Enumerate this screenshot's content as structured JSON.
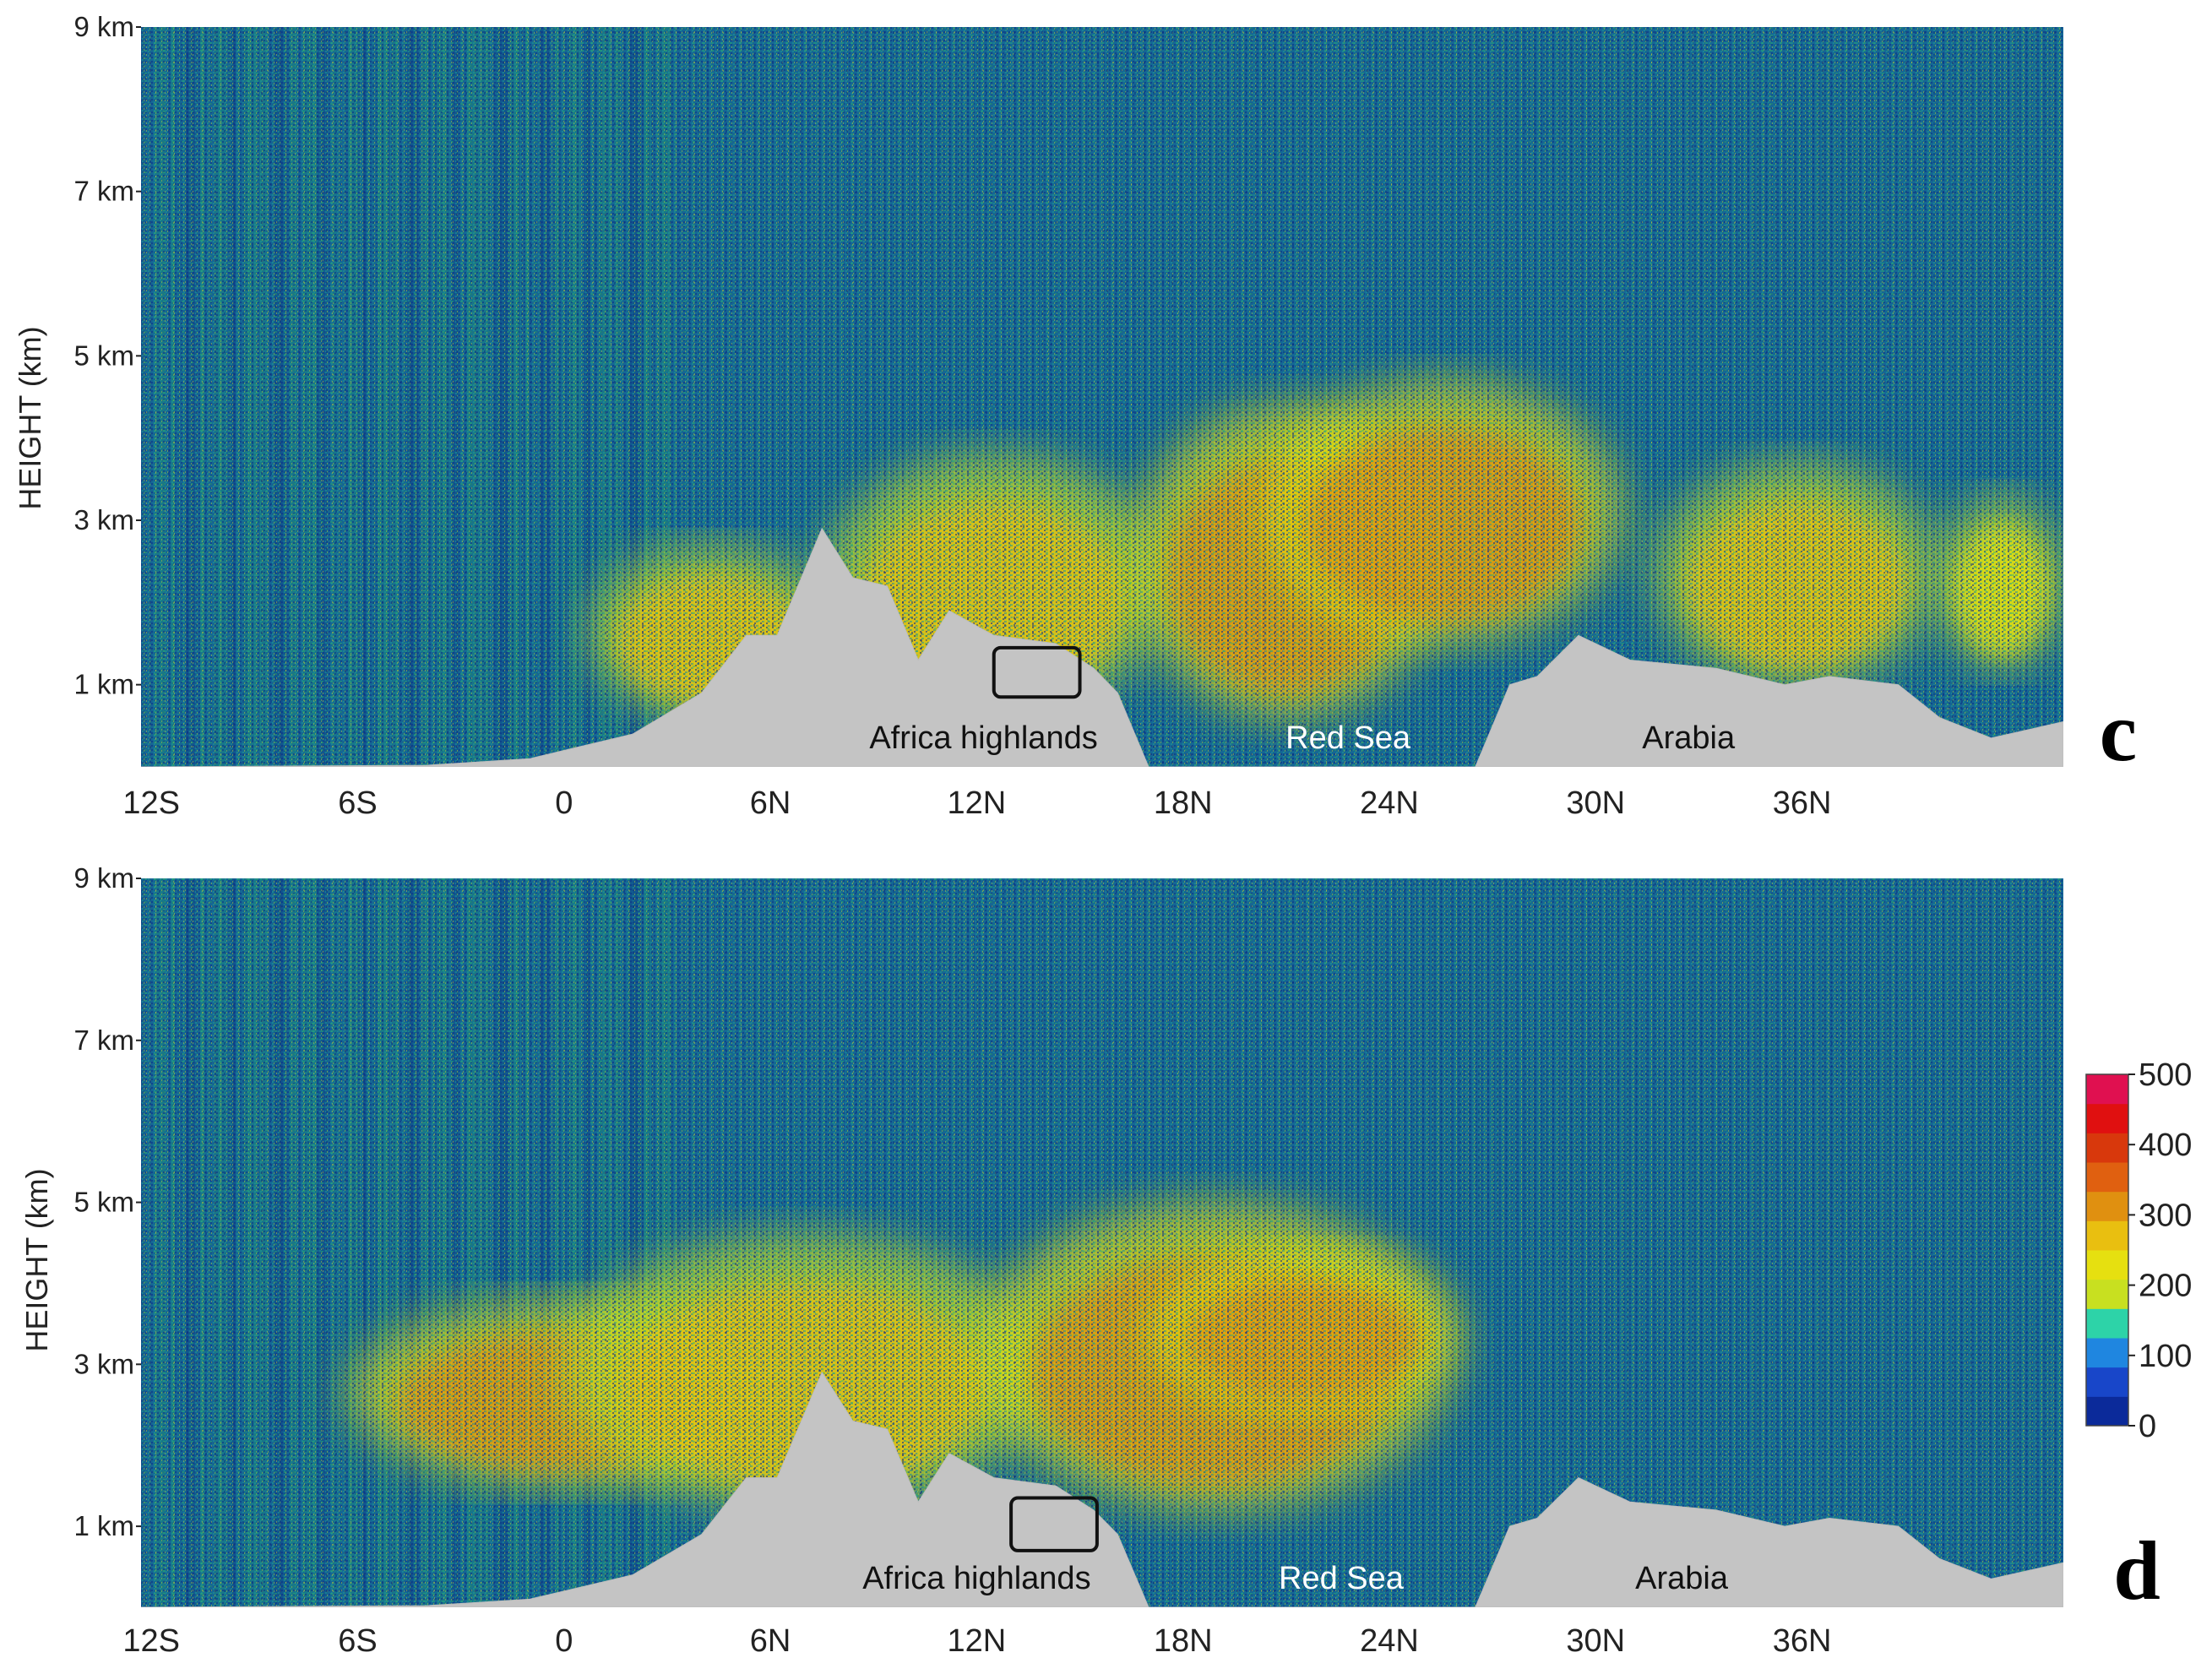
{
  "chart_data": [
    {
      "type": "heatmap",
      "panel_label": "c",
      "ylabel": "HEIGHT (km)",
      "y_ticks": [
        "9 km",
        "7 km",
        "5 km",
        "3 km",
        "1 km"
      ],
      "y_tick_values": [
        9,
        7,
        5,
        3,
        1
      ],
      "x_ticks": [
        "12S",
        "6S",
        "0",
        "6N",
        "12N",
        "18N",
        "24N",
        "30N",
        "36N"
      ],
      "x_tick_values": [
        -12,
        -6,
        0,
        6,
        12,
        18,
        24,
        30,
        36
      ],
      "xlim": [
        -12.3,
        43.6
      ],
      "ylim": [
        0,
        9
      ],
      "annotations": [
        {
          "text": "Africa highlands",
          "x": 12.2
        },
        {
          "text": "Red Sea",
          "x": 22.8
        },
        {
          "text": "Arabia",
          "x": 32.7
        }
      ],
      "highlight_box": {
        "x": [
          12.5,
          15
        ],
        "y": [
          0.85,
          1.45
        ]
      },
      "terrain": [
        [
          -12.3,
          0
        ],
        [
          -4,
          0.02
        ],
        [
          -1,
          0.1
        ],
        [
          0,
          0.2
        ],
        [
          2,
          0.4
        ],
        [
          4,
          0.9
        ],
        [
          5.3,
          1.6
        ],
        [
          6.2,
          1.6
        ],
        [
          7.5,
          2.9
        ],
        [
          8.4,
          2.3
        ],
        [
          9.4,
          2.2
        ],
        [
          10.3,
          1.3
        ],
        [
          11.2,
          1.9
        ],
        [
          12.5,
          1.6
        ],
        [
          14.3,
          1.5
        ],
        [
          15.4,
          1.2
        ],
        [
          16.1,
          0.9
        ],
        [
          17,
          0
        ],
        [
          26.5,
          0
        ],
        [
          27.5,
          1
        ],
        [
          28.3,
          1.1
        ],
        [
          29.5,
          1.6
        ],
        [
          31,
          1.3
        ],
        [
          33.5,
          1.2
        ],
        [
          35.5,
          1.0
        ],
        [
          36.8,
          1.1
        ],
        [
          38.8,
          1.0
        ],
        [
          40,
          0.6
        ],
        [
          41.5,
          0.35
        ],
        [
          43.6,
          0.55
        ]
      ],
      "aerosol_layers": [
        {
          "lat": [
            0.7,
            7.8
          ],
          "z": [
            0.6,
            2.7
          ],
          "level": 250
        },
        {
          "lat": [
            7.5,
            17.5
          ],
          "z": [
            0.6,
            3.8
          ],
          "level": 280
        },
        {
          "lat": [
            16.5,
            25.5
          ],
          "z": [
            0.6,
            4.4
          ],
          "level": 300
        },
        {
          "lat": [
            20.3,
            30.8
          ],
          "z": [
            1.5,
            4.7
          ],
          "level": 300
        },
        {
          "lat": [
            31.7,
            40
          ],
          "z": [
            1.0,
            3.7
          ],
          "level": 260
        },
        {
          "lat": [
            40,
            43.6
          ],
          "z": [
            1.2,
            3.3
          ],
          "level": 230
        }
      ]
    },
    {
      "type": "heatmap",
      "panel_label": "d",
      "ylabel": "HEIGHT (km)",
      "y_ticks": [
        "9 km",
        "7 km",
        "5 km",
        "3 km",
        "1 km"
      ],
      "y_tick_values": [
        9,
        7,
        5,
        3,
        1
      ],
      "x_ticks": [
        "12S",
        "6S",
        "0",
        "6N",
        "12N",
        "18N",
        "24N",
        "30N",
        "36N"
      ],
      "x_tick_values": [
        -12,
        -6,
        0,
        6,
        12,
        18,
        24,
        30,
        36
      ],
      "xlim": [
        -12.3,
        43.6
      ],
      "ylim": [
        0,
        9
      ],
      "annotations": [
        {
          "text": "Africa highlands",
          "x": 12.0
        },
        {
          "text": "Red Sea",
          "x": 22.6
        },
        {
          "text": "Arabia",
          "x": 32.5
        }
      ],
      "highlight_box": {
        "x": [
          13,
          15.5
        ],
        "y": [
          0.7,
          1.35
        ]
      },
      "terrain": [
        [
          -12.3,
          0
        ],
        [
          -4,
          0.02
        ],
        [
          -1,
          0.1
        ],
        [
          0,
          0.2
        ],
        [
          2,
          0.4
        ],
        [
          4,
          0.9
        ],
        [
          5.3,
          1.6
        ],
        [
          6.2,
          1.6
        ],
        [
          7.5,
          2.9
        ],
        [
          8.4,
          2.3
        ],
        [
          9.4,
          2.2
        ],
        [
          10.3,
          1.3
        ],
        [
          11.2,
          1.9
        ],
        [
          12.5,
          1.6
        ],
        [
          14.3,
          1.5
        ],
        [
          15.4,
          1.2
        ],
        [
          16.1,
          0.9
        ],
        [
          17,
          0
        ],
        [
          26.5,
          0
        ],
        [
          27.5,
          1
        ],
        [
          28.3,
          1.1
        ],
        [
          29.5,
          1.6
        ],
        [
          31,
          1.3
        ],
        [
          33.5,
          1.2
        ],
        [
          35.5,
          1.0
        ],
        [
          36.8,
          1.1
        ],
        [
          38.8,
          1.0
        ],
        [
          40,
          0.6
        ],
        [
          41.5,
          0.35
        ],
        [
          43.6,
          0.55
        ]
      ],
      "aerosol_layers": [
        {
          "lat": [
            -6.3,
            6.3
          ],
          "z": [
            1.5,
            3.8
          ],
          "level": 320
        },
        {
          "lat": [
            0,
            14
          ],
          "z": [
            1.2,
            4.6
          ],
          "level": 280
        },
        {
          "lat": [
            12,
            25.8
          ],
          "z": [
            1.2,
            5.0
          ],
          "level": 300
        },
        {
          "lat": [
            17,
            26
          ],
          "z": [
            2.4,
            4.4
          ],
          "level": 330
        }
      ]
    }
  ],
  "colorbar": {
    "ticks": [
      "500",
      "400",
      "300",
      "200",
      "100",
      "0"
    ],
    "tick_values": [
      500,
      400,
      300,
      200,
      100,
      0
    ],
    "colors": [
      "#0b2a9a",
      "#1846c9",
      "#1f86e0",
      "#2dd3a8",
      "#c8e020",
      "#e6e010",
      "#e9bf10",
      "#e09010",
      "#e06010",
      "#d8380c",
      "#e01010",
      "#e01050"
    ]
  }
}
